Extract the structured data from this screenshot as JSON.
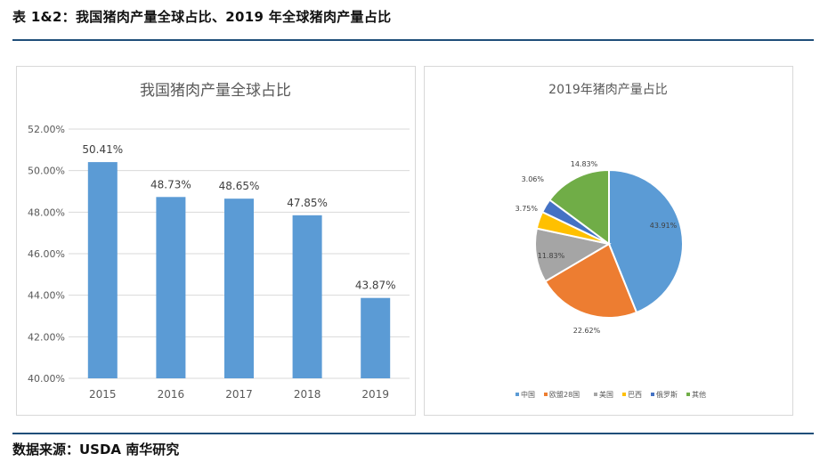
{
  "header": {
    "title": "表 1&2：我国猪肉产量全球占比、2019 年全球猪肉产量占比"
  },
  "footer": {
    "source": "数据来源：USDA 南华研究"
  },
  "chart_data": [
    {
      "type": "bar",
      "title": "我国猪肉产量全球占比",
      "categories": [
        "2015",
        "2016",
        "2017",
        "2018",
        "2019"
      ],
      "values": [
        50.41,
        48.73,
        48.65,
        47.85,
        43.87
      ],
      "value_labels": [
        "50.41%",
        "48.73%",
        "48.65%",
        "47.85%",
        "43.87%"
      ],
      "ylim": [
        40,
        52
      ],
      "yticks": [
        "40.00%",
        "42.00%",
        "44.00%",
        "46.00%",
        "48.00%",
        "50.00%",
        "52.00%"
      ],
      "grid": true,
      "color": "#5b9bd5"
    },
    {
      "type": "pie",
      "title": "2019年猪肉产量占比",
      "labels": [
        "中国",
        "欧盟28国",
        "美国",
        "巴西",
        "俄罗斯",
        "其他"
      ],
      "values": [
        43.91,
        22.62,
        11.83,
        3.75,
        3.06,
        14.83
      ],
      "value_labels": [
        "43.91%",
        "22.62%",
        "11.83%",
        "3.75%",
        "3.06%",
        "14.83%"
      ],
      "colors": [
        "#5b9bd5",
        "#ed7d31",
        "#a5a5a5",
        "#ffc000",
        "#4472c4",
        "#70ad47"
      ],
      "legend": "bottom"
    }
  ]
}
